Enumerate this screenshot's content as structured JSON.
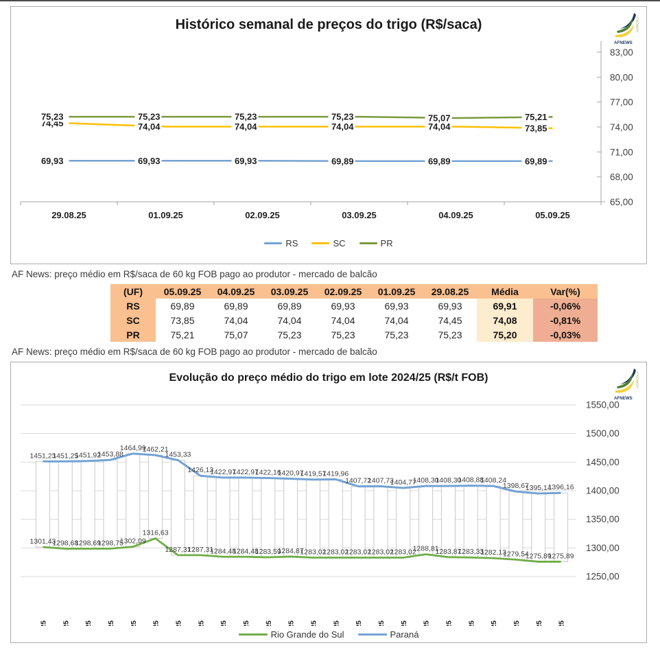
{
  "logo": {
    "brand": "AFNEWS",
    "vertical_text": "AGRÍCOLA"
  },
  "captions": {
    "top": "AF News: preço médio em R$/saca de 60 kg FOB pago ao produtor - mercado de balcão",
    "bottom": "AF News: preço médio em R$/saca de 60 kg FOB pago ao produtor - mercado de balcão"
  },
  "table": {
    "headers": [
      "(UF)",
      "05.09.25",
      "04.09.25",
      "03.09.25",
      "02.09.25",
      "01.09.25",
      "29.08.25",
      "Média",
      "Var(%)"
    ],
    "rows": [
      {
        "uf": "RS",
        "values": [
          "69,89",
          "69,89",
          "69,89",
          "69,93",
          "69,93",
          "69,93"
        ],
        "media": "69,91",
        "var": "-0,06%"
      },
      {
        "uf": "SC",
        "values": [
          "73,85",
          "74,04",
          "74,04",
          "74,04",
          "74,04",
          "74,45"
        ],
        "media": "74,08",
        "var": "-0,81%"
      },
      {
        "uf": "PR",
        "values": [
          "75,21",
          "75,07",
          "75,23",
          "75,23",
          "75,23",
          "75,23"
        ],
        "media": "75,20",
        "var": "-0,03%"
      }
    ],
    "colors": {
      "header_bg": "#fac090",
      "media_bg": "#fdeccd",
      "var_bg": "#efae93"
    }
  },
  "chart_data": [
    {
      "type": "line",
      "title": "Histórico semanal de preços do trigo (R$/saca)",
      "categories": [
        "29.08.25",
        "01.09.25",
        "02.09.25",
        "03.09.25",
        "04.09.25",
        "05.09.25"
      ],
      "series": [
        {
          "name": "RS",
          "color": "#74a3d4",
          "values": [
            69.93,
            69.93,
            69.93,
            69.89,
            69.89,
            69.89
          ]
        },
        {
          "name": "SC",
          "color": "#ffc000",
          "values": [
            74.45,
            74.04,
            74.04,
            74.04,
            74.04,
            73.85
          ]
        },
        {
          "name": "PR",
          "color": "#7a9a3d",
          "values": [
            75.23,
            75.23,
            75.23,
            75.23,
            75.07,
            75.21
          ]
        }
      ],
      "ylim": [
        65,
        83
      ],
      "ytick_step": 3,
      "grid": false,
      "axis_side": "right",
      "legend_position": "bottom",
      "decimal": "comma"
    },
    {
      "type": "line",
      "title": "Evolução do preço médio do trigo em lote 2024/25 (R$/t FOB)",
      "categories": [
        "05.08.25",
        "06.08.25",
        "07.08.25",
        "08.08.25",
        "11.08.25",
        "12.08.25",
        "13.08.25",
        "14.08.25",
        "15.08.25",
        "18.08.25",
        "19.08.25",
        "20.08.25",
        "21.08.25",
        "22.08.25",
        "25.08.25",
        "26.08.25",
        "27.08.25",
        "28.08.25",
        "29.08.25",
        "01.09.25",
        "02.09.25",
        "03.09.25",
        "04.09.25",
        "05.09.25"
      ],
      "series": [
        {
          "name": "Rio Grande do Sul",
          "color": "#70ad47",
          "values": [
            1301.43,
            1298.68,
            1298.69,
            1298.75,
            1302.09,
            1316.63,
            1287.31,
            1287.31,
            1284.48,
            1284.48,
            1283.59,
            1284.87,
            1283.02,
            1283.02,
            1283.02,
            1283.02,
            1283.02,
            1288.81,
            1283.87,
            1283.33,
            1282.13,
            1279.54,
            1275.89,
            1275.89
          ]
        },
        {
          "name": "Paraná",
          "color": "#74a3d4",
          "values": [
            1451.23,
            1451.25,
            1451.92,
            1453.88,
            1464.99,
            1462.21,
            1453.33,
            1426.13,
            1422.97,
            1422.97,
            1422.16,
            1420.97,
            1419.57,
            1419.96,
            1407.72,
            1407.73,
            1404.77,
            1408.3,
            1408.3,
            1408.88,
            1408.24,
            1398.67,
            1395.14,
            1396.16
          ]
        }
      ],
      "ylim": [
        1250,
        1550
      ],
      "ytick_step": 50,
      "grid": true,
      "updown_bars": true,
      "axis_side": "right",
      "legend_position": "bottom",
      "decimal": "comma"
    }
  ]
}
